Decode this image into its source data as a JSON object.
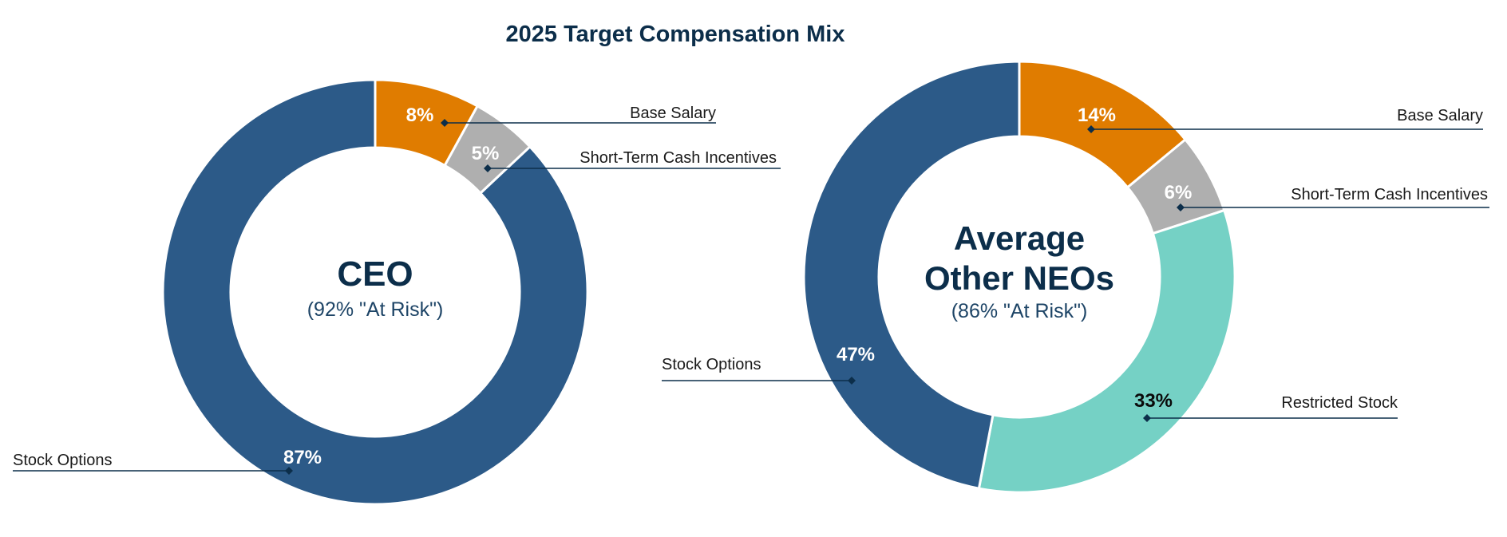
{
  "title": "2025 Target Compensation Mix",
  "colors": {
    "Base Salary": "#e07c00",
    "Short-Term Cash Incentives": "#afafaf",
    "Stock Options": "#2c5a88",
    "Restricted Stock": "#75d1c5"
  },
  "chart_data": [
    {
      "type": "pie",
      "center_title": [
        "CEO"
      ],
      "center_subtitle": "(92% \"At Risk\")",
      "slices": [
        {
          "category": "Base Salary",
          "value": 8,
          "label": "8%"
        },
        {
          "category": "Short-Term Cash Incentives",
          "value": 5,
          "label": "5%"
        },
        {
          "category": "Stock Options",
          "value": 87,
          "label": "87%"
        }
      ]
    },
    {
      "type": "pie",
      "center_title": [
        "Average",
        "Other NEOs"
      ],
      "center_subtitle": "(86% \"At Risk\")",
      "slices": [
        {
          "category": "Base Salary",
          "value": 14,
          "label": "14%"
        },
        {
          "category": "Short-Term Cash Incentives",
          "value": 6,
          "label": "6%"
        },
        {
          "category": "Restricted Stock",
          "value": 33,
          "label": "33%"
        },
        {
          "category": "Stock Options",
          "value": 47,
          "label": "47%"
        }
      ]
    }
  ]
}
